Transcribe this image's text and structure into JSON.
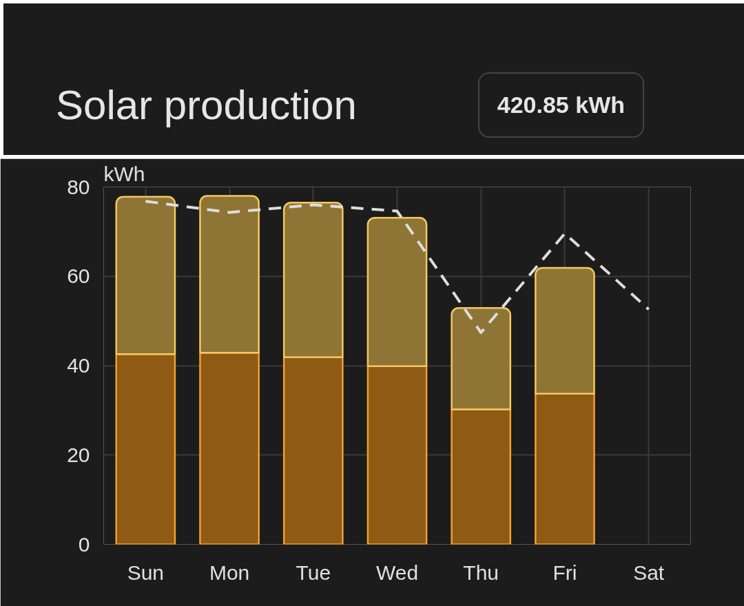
{
  "chart_data": {
    "type": "bar",
    "title": "Solar production",
    "ylabel": "kWh",
    "annotations": [
      "420.85 kWh"
    ],
    "categories": [
      "Sun",
      "Mon",
      "Tue",
      "Wed",
      "Thu",
      "Fri",
      "Sat"
    ],
    "stacked": true,
    "series": [
      {
        "color": "#8f5a14",
        "values": [
          42.6,
          42.9,
          41.9,
          39.9,
          30.2,
          33.7,
          null
        ]
      },
      {
        "color": "#8e7535",
        "values": [
          35.2,
          35.1,
          34.6,
          33.2,
          22.7,
          28.2,
          null
        ]
      },
      {
        "type": "line",
        "color": "#dddddd",
        "line_style": "dashed",
        "values": [
          76.8,
          74.3,
          76.0,
          74.6,
          47.4,
          69.6,
          52.6
        ]
      }
    ],
    "ylim": [
      0,
      80
    ],
    "yticks": [
      0,
      20,
      40,
      60,
      80
    ],
    "grid": true
  }
}
